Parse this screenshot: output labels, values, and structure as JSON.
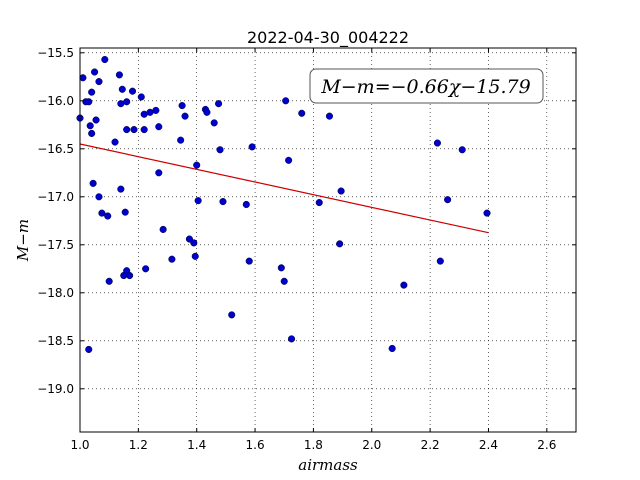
{
  "chart_data": {
    "type": "scatter",
    "title": "2022-04-30_004222",
    "xlabel": "airmass",
    "ylabel": "M−m",
    "xlim": [
      1.0,
      2.7
    ],
    "ylim": [
      -19.45,
      -15.45
    ],
    "y_inverted": true,
    "grid": true,
    "x_ticks": [
      "1.0",
      "1.2",
      "1.4",
      "1.6",
      "1.8",
      "2.0",
      "2.2",
      "2.4",
      "2.6"
    ],
    "x_tick_values": [
      1.0,
      1.2,
      1.4,
      1.6,
      1.8,
      2.0,
      2.2,
      2.4,
      2.6
    ],
    "y_ticks": [
      "−15.5",
      "−16.0",
      "−16.5",
      "−17.0",
      "−17.5",
      "−18.0",
      "−18.5",
      "−19.0"
    ],
    "y_tick_values": [
      -15.5,
      -16.0,
      -16.5,
      -17.0,
      -17.5,
      -18.0,
      -18.5,
      -19.0
    ],
    "annotation": "M−m=−0.66χ−15.79",
    "annotation_position": "top-right",
    "point_color": "#0000cc",
    "fit_color": "#cc0000",
    "fit": {
      "slope": -0.66,
      "intercept": -15.79,
      "x_range": [
        1.0,
        2.4
      ]
    },
    "points": [
      [
        1.0,
        -16.18
      ],
      [
        1.01,
        -15.76
      ],
      [
        1.02,
        -16.01
      ],
      [
        1.03,
        -16.01
      ],
      [
        1.035,
        -16.26
      ],
      [
        1.04,
        -15.91
      ],
      [
        1.04,
        -16.34
      ],
      [
        1.045,
        -16.86
      ],
      [
        1.05,
        -15.7
      ],
      [
        1.055,
        -16.2
      ],
      [
        1.065,
        -15.8
      ],
      [
        1.065,
        -17.0
      ],
      [
        1.075,
        -17.17
      ],
      [
        1.085,
        -15.57
      ],
      [
        1.095,
        -17.2
      ],
      [
        1.1,
        -17.88
      ],
      [
        1.12,
        -16.43
      ],
      [
        1.135,
        -15.73
      ],
      [
        1.14,
        -16.03
      ],
      [
        1.145,
        -15.88
      ],
      [
        1.14,
        -16.92
      ],
      [
        1.15,
        -17.82
      ],
      [
        1.155,
        -17.16
      ],
      [
        1.16,
        -16.01
      ],
      [
        1.16,
        -16.3
      ],
      [
        1.16,
        -17.77
      ],
      [
        1.17,
        -17.82
      ],
      [
        1.18,
        -15.9
      ],
      [
        1.185,
        -16.3
      ],
      [
        1.21,
        -15.96
      ],
      [
        1.22,
        -16.14
      ],
      [
        1.22,
        -16.3
      ],
      [
        1.225,
        -17.75
      ],
      [
        1.24,
        -16.12
      ],
      [
        1.26,
        -16.1
      ],
      [
        1.27,
        -16.75
      ],
      [
        1.27,
        -16.27
      ],
      [
        1.285,
        -17.34
      ],
      [
        1.315,
        -17.65
      ],
      [
        1.345,
        -16.41
      ],
      [
        1.35,
        -16.05
      ],
      [
        1.36,
        -16.16
      ],
      [
        1.375,
        -17.44
      ],
      [
        1.39,
        -17.48
      ],
      [
        1.395,
        -17.62
      ],
      [
        1.4,
        -16.67
      ],
      [
        1.405,
        -17.04
      ],
      [
        1.43,
        -16.09
      ],
      [
        1.435,
        -16.12
      ],
      [
        1.46,
        -16.23
      ],
      [
        1.475,
        -16.03
      ],
      [
        1.48,
        -16.51
      ],
      [
        1.49,
        -17.05
      ],
      [
        1.52,
        -18.23
      ],
      [
        1.57,
        -17.08
      ],
      [
        1.58,
        -17.67
      ],
      [
        1.59,
        -16.48
      ],
      [
        1.69,
        -17.74
      ],
      [
        1.7,
        -17.88
      ],
      [
        1.705,
        -16.0
      ],
      [
        1.715,
        -16.62
      ],
      [
        1.725,
        -18.48
      ],
      [
        1.76,
        -16.13
      ],
      [
        1.82,
        -17.06
      ],
      [
        1.855,
        -16.16
      ],
      [
        1.89,
        -17.49
      ],
      [
        1.895,
        -16.94
      ],
      [
        2.07,
        -18.58
      ],
      [
        2.11,
        -17.92
      ],
      [
        2.225,
        -16.44
      ],
      [
        2.235,
        -17.67
      ],
      [
        2.26,
        -17.03
      ],
      [
        2.31,
        -16.51
      ],
      [
        2.395,
        -17.17
      ],
      [
        1.03,
        -18.59
      ]
    ]
  }
}
